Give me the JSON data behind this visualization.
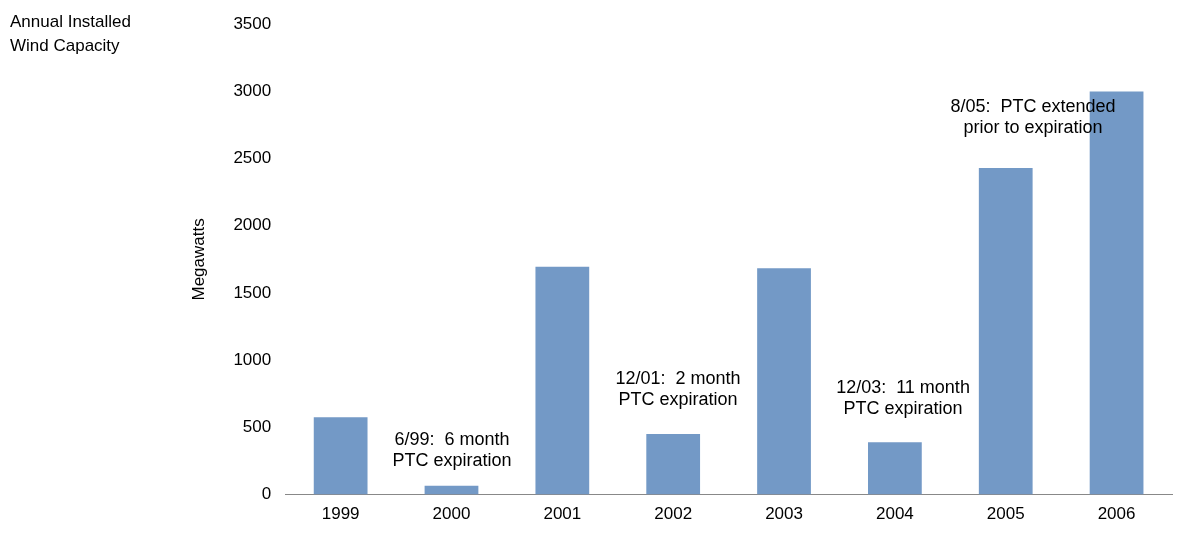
{
  "chart_data": {
    "type": "bar",
    "title": "Annual Installed\nWind Capacity",
    "ylabel": "Megawatts",
    "categories": [
      "1999",
      "2000",
      "2001",
      "2002",
      "2003",
      "2004",
      "2005",
      "2006"
    ],
    "values": [
      575,
      65,
      1695,
      450,
      1685,
      390,
      2430,
      3000
    ],
    "color": "#7399c6",
    "ylim": [
      0,
      3500
    ],
    "yticks": [
      0,
      500,
      1000,
      1500,
      2000,
      2500,
      3000,
      3500
    ],
    "grid": false,
    "legend": false,
    "annotations": [
      "6/99:  6 month\nPTC expiration",
      "12/01:  2 month\nPTC expiration",
      "12/03:  11 month\nPTC expiration",
      "8/05:  PTC extended\nprior to expiration"
    ]
  }
}
